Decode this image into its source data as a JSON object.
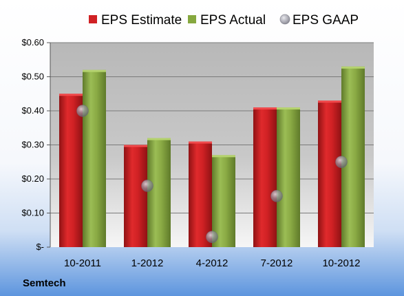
{
  "chart_data": {
    "type": "bar",
    "categories": [
      "10-2011",
      "1-2012",
      "4-2012",
      "7-2012",
      "10-2012"
    ],
    "series": [
      {
        "name": "EPS Estimate",
        "kind": "bar",
        "color": "#cc1f22",
        "values": [
          0.45,
          0.3,
          0.31,
          0.41,
          0.43
        ]
      },
      {
        "name": "EPS Actual",
        "kind": "bar",
        "color": "#86a83f",
        "values": [
          0.52,
          0.32,
          0.27,
          0.41,
          0.53
        ]
      },
      {
        "name": "EPS GAAP",
        "kind": "marker",
        "color": "#9a9aa6",
        "values": [
          0.4,
          0.18,
          0.03,
          0.15,
          0.25
        ]
      }
    ],
    "ylim": [
      0,
      0.6
    ],
    "yticks": [
      0,
      0.1,
      0.2,
      0.3,
      0.4,
      0.5,
      0.6
    ],
    "ytick_labels": [
      "$-",
      "$0.10",
      "$0.20",
      "$0.30",
      "$0.40",
      "$0.50",
      "$0.60"
    ],
    "grid": true,
    "legend_position": "top"
  },
  "company": "Semtech"
}
